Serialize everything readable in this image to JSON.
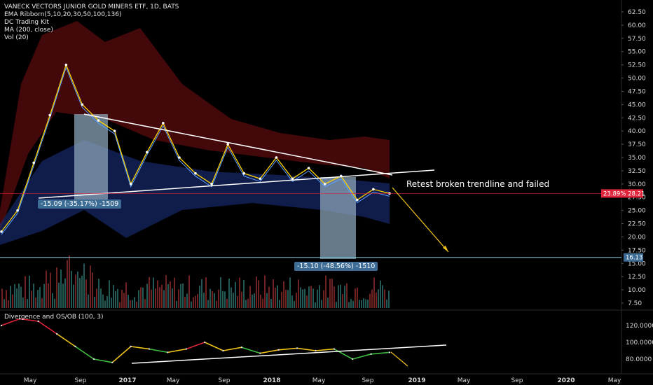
{
  "legend": {
    "title": "VANECK VECTORS JUNIOR GOLD MINERS ETF, 1D, BATS",
    "ema": "EMA Ribborn(5,10,20,30,50,100,136)",
    "kit": "DC Trading Kit",
    "ma": "MA (200, close)",
    "vol": "Vol (20)"
  },
  "oscillator_title": "Divergence and OS/OB (100, 3)",
  "annotations": {
    "measure1": "-15.09 (-35.17%) -1509",
    "measure2": "-15.10 (-48.56%) -1510",
    "callout": "Retest broken trendline and failed",
    "price_tag": "23.89%  28.21",
    "level_tag": "16.13"
  },
  "colors": {
    "accent_red": "#e0243b",
    "level_line": "#7fc6d6",
    "measure_box": "#8aa3b8",
    "price_up": "#26a69a",
    "price_down": "#ef5350",
    "arrow": "#f0c419"
  },
  "chart_data": [
    {
      "type": "line",
      "title": "VANECK VECTORS JUNIOR GOLD MINERS ETF, 1D, BATS",
      "xlabel": "",
      "ylabel": "",
      "x_ticks": [
        "May",
        "Sep",
        "2017",
        "May",
        "Sep",
        "2018",
        "May",
        "Sep",
        "2019",
        "May",
        "Sep",
        "2020",
        "May"
      ],
      "y_ticks": [
        "62.50",
        "60.00",
        "57.50",
        "55.00",
        "52.50",
        "50.00",
        "47.50",
        "45.00",
        "42.50",
        "40.00",
        "37.50",
        "35.00",
        "32.50",
        "30.00",
        "27.50",
        "25.00",
        "22.50",
        "20.00",
        "17.50",
        "15.00",
        "12.50",
        "10.00",
        "7.50"
      ],
      "ylim": [
        7.5,
        62.5
      ],
      "series": [
        {
          "name": "price",
          "values": [
            21,
            25,
            34,
            43,
            52.5,
            45,
            42,
            40,
            30,
            36,
            41.5,
            35,
            32,
            30,
            37.5,
            32,
            31,
            35,
            31,
            33,
            30,
            31.5,
            27,
            29,
            28.21
          ]
        }
      ],
      "last_price": 28.21,
      "last_change_pct": 23.89,
      "level": 16.13,
      "annotations": [
        "-15.09 (-35.17%) -1509",
        "-15.10 (-48.56%) -1510",
        "Retest broken trendline and failed"
      ]
    },
    {
      "type": "line",
      "title": "Divergence and OS/OB (100, 3)",
      "y_ticks": [
        "120.0000",
        "100.0000",
        "80.0000"
      ],
      "ylim": [
        65,
        130
      ],
      "series": [
        {
          "name": "oscillator",
          "values": [
            120,
            128,
            125,
            110,
            95,
            80,
            76,
            95,
            92,
            88,
            92,
            100,
            90,
            94,
            87,
            91,
            93,
            90,
            92,
            80,
            86,
            88
          ]
        }
      ]
    }
  ]
}
